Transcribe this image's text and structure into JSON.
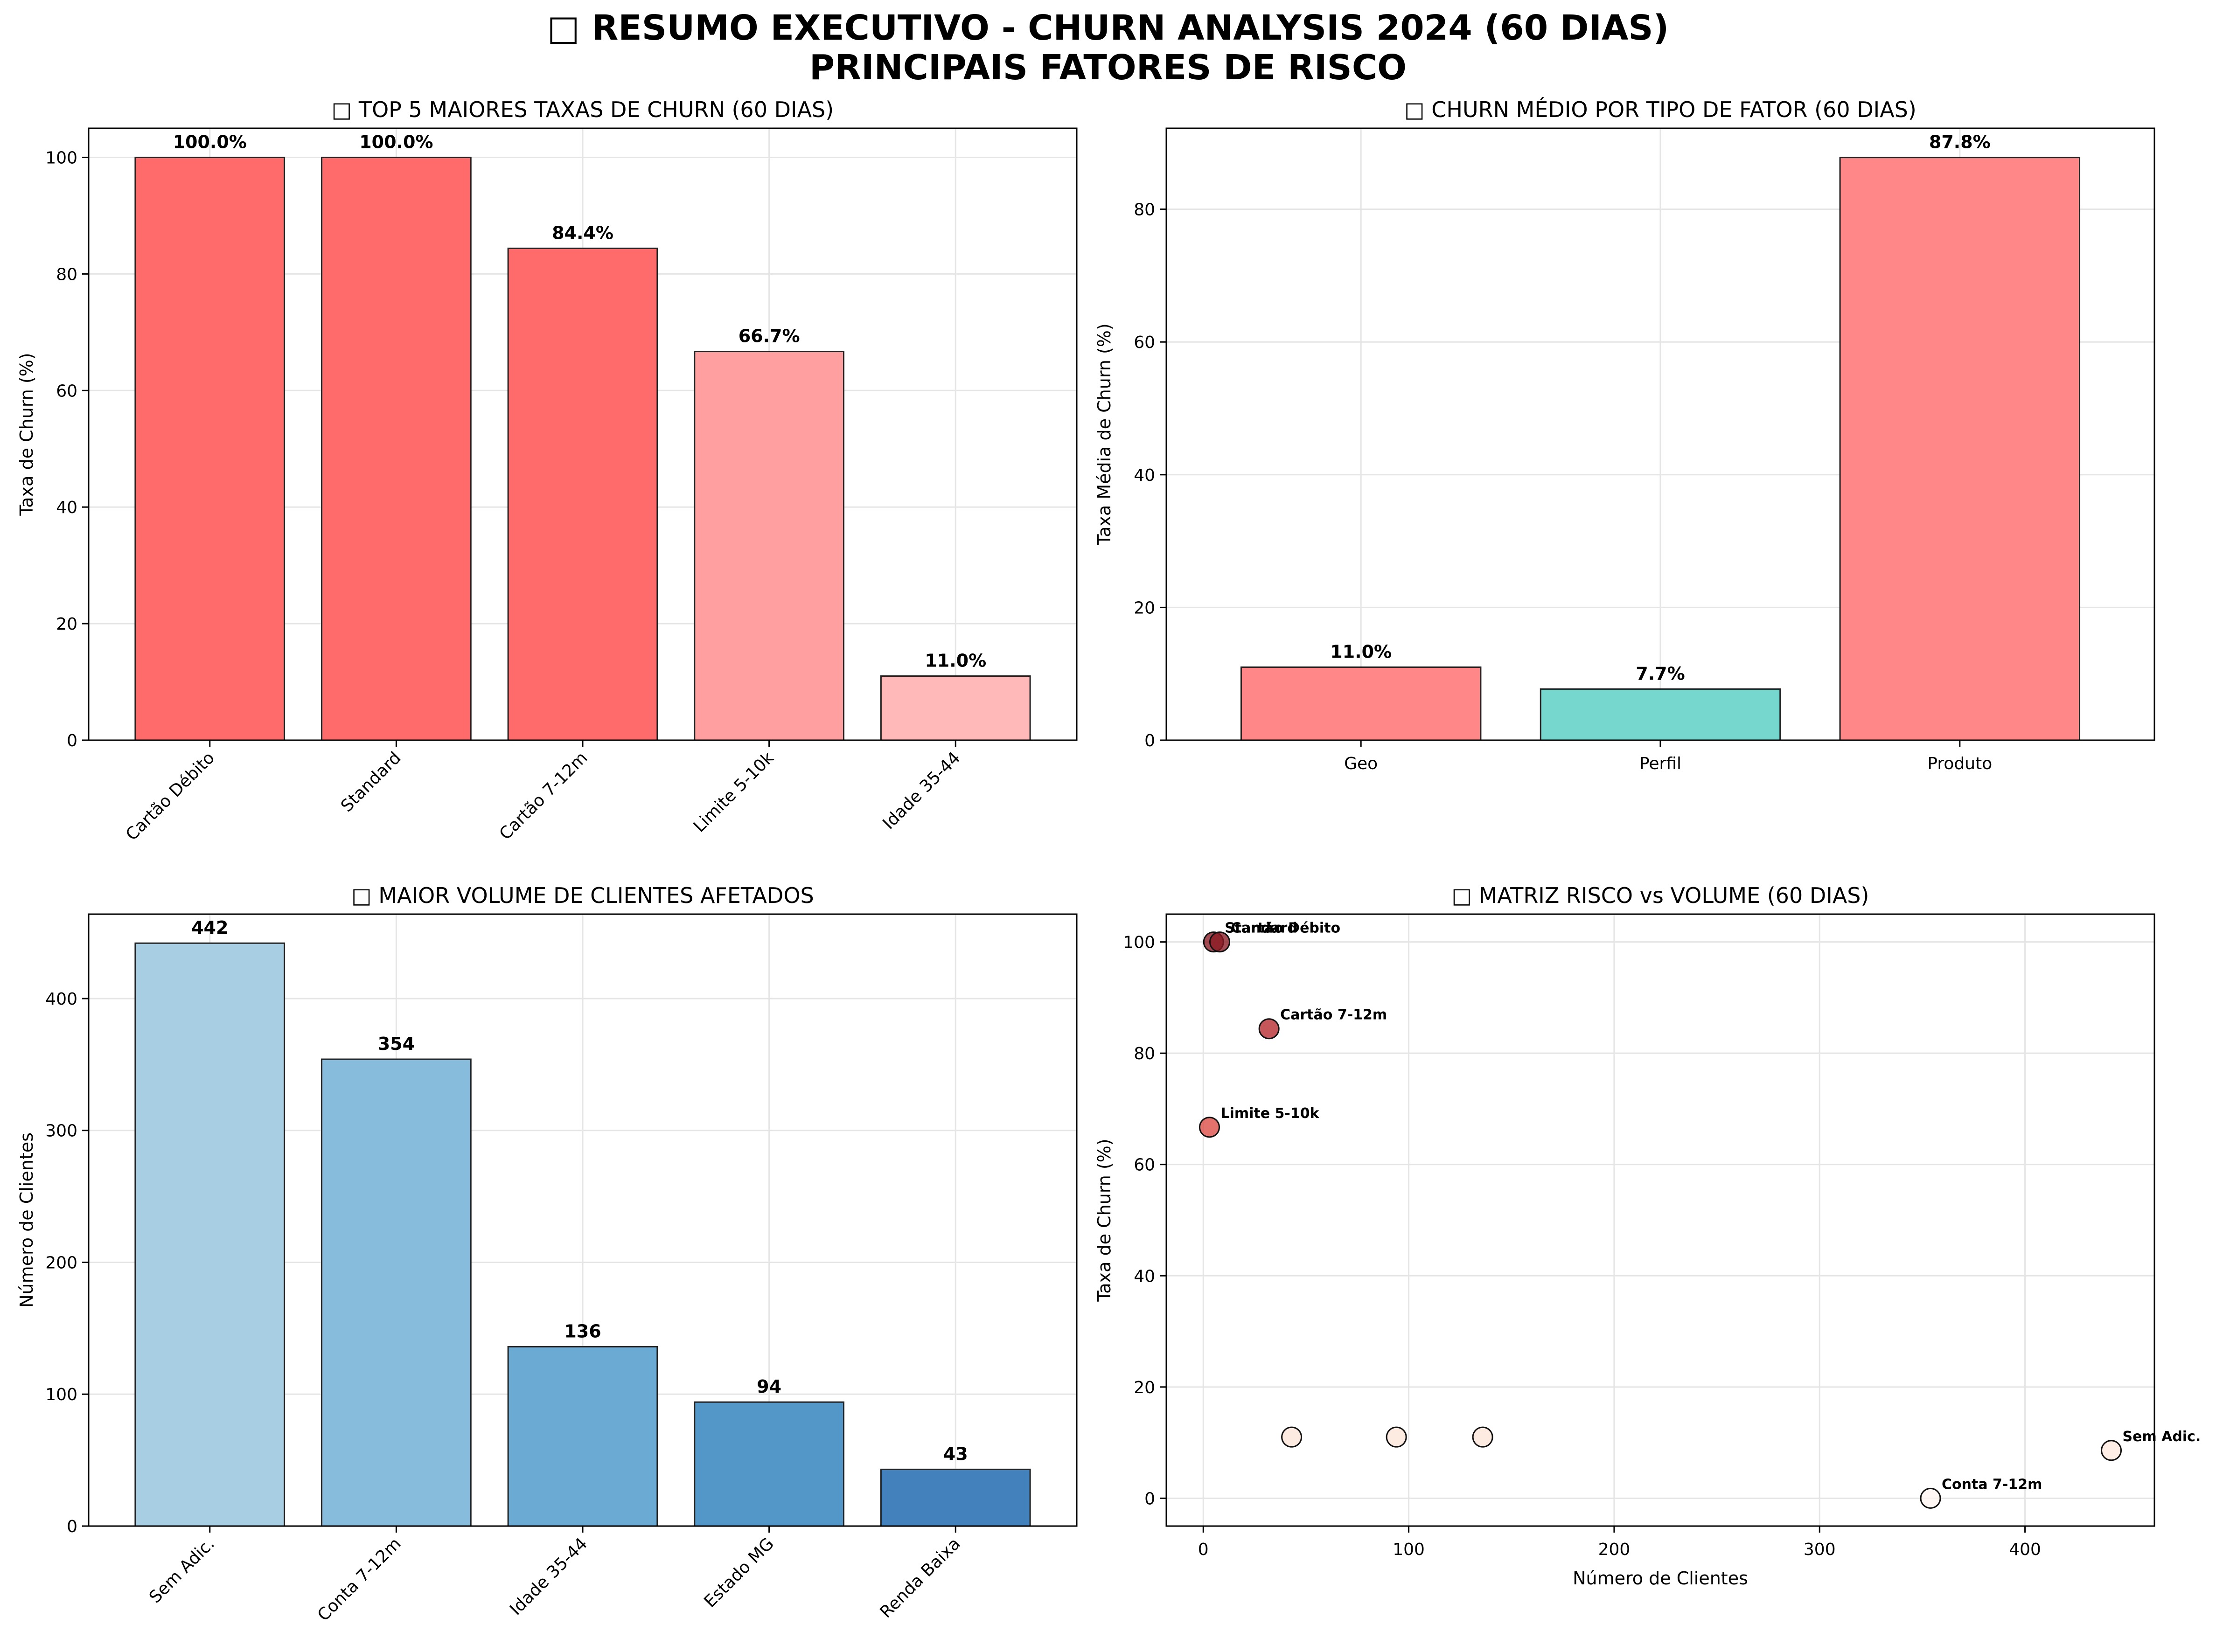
{
  "title": {
    "line1": "□ RESUMO EXECUTIVO - CHURN ANALYSIS 2024 (60 DIAS)",
    "line2": "PRINCIPAIS FATORES DE RISCO"
  },
  "chart_data": [
    {
      "id": "top5",
      "type": "bar",
      "title": "□ TOP 5 MAIORES TAXAS DE CHURN (60 DIAS)",
      "xlabel": "",
      "ylabel": "Taxa de Churn (%)",
      "categories": [
        "Cartão Débito",
        "Standard",
        "Cartão 7-12m",
        "Limite 5-10k",
        "Idade 35-44"
      ],
      "values": [
        100.0,
        100.0,
        84.4,
        66.7,
        11.0
      ],
      "data_labels": [
        "100.0%",
        "100.0%",
        "84.4%",
        "66.7%",
        "11.0%"
      ],
      "colors": [
        "#ff6b6b",
        "#ff6b6b",
        "#ff6b6b",
        "#ff9f9f",
        "#ffb9b9"
      ],
      "ylim": [
        0,
        105
      ],
      "yticks": [
        0,
        20,
        40,
        60,
        80,
        100
      ],
      "xtick_rotation": 45,
      "grid": true
    },
    {
      "id": "tipo",
      "type": "bar",
      "title": "□ CHURN MÉDIO POR TIPO DE FATOR (60 DIAS)",
      "xlabel": "",
      "ylabel": "Taxa Média de Churn (%)",
      "categories": [
        "Geo",
        "Perfil",
        "Produto"
      ],
      "values": [
        11.0,
        7.7,
        87.8
      ],
      "data_labels": [
        "11.0%",
        "7.7%",
        "87.8%"
      ],
      "colors": [
        "#ff8787",
        "#76d7cf",
        "#ff8787"
      ],
      "ylim": [
        0,
        92.2
      ],
      "yticks": [
        0,
        20,
        40,
        60,
        80
      ],
      "xtick_rotation": 0,
      "grid": true
    },
    {
      "id": "volume",
      "type": "bar",
      "title": "□ MAIOR VOLUME DE CLIENTES AFETADOS",
      "xlabel": "",
      "ylabel": "Número de Clientes",
      "categories": [
        "Sem Adic.",
        "Conta 7-12m",
        "Idade 35-44",
        "Estado MG",
        "Renda Baixa"
      ],
      "values": [
        442,
        354,
        136,
        94,
        43
      ],
      "data_labels": [
        "442",
        "354",
        "136",
        "94",
        "43"
      ],
      "colors": [
        "#a8cee4",
        "#88bcdd",
        "#6aaad3",
        "#5396c8",
        "#4281bc"
      ],
      "ylim": [
        0,
        464
      ],
      "yticks": [
        0,
        100,
        200,
        300,
        400
      ],
      "xtick_rotation": 45,
      "grid": true
    },
    {
      "id": "matriz",
      "type": "scatter",
      "title": "□ MATRIZ RISCO vs VOLUME (60 DIAS)",
      "xlabel": "Número de Clientes",
      "ylabel": "Taxa de Churn (%)",
      "xlim": [
        -18,
        463
      ],
      "ylim": [
        -5,
        105
      ],
      "xticks": [
        0,
        100,
        200,
        300,
        400
      ],
      "yticks": [
        0,
        20,
        40,
        60,
        80,
        100
      ],
      "grid": true,
      "points": [
        {
          "x": 5,
          "y": 100.0,
          "label": "Standard",
          "color": "#8b1a22"
        },
        {
          "x": 8,
          "y": 100.0,
          "label": "Cartão Débito",
          "color": "#8b1a22"
        },
        {
          "x": 32,
          "y": 84.4,
          "label": "Cartão 7-12m",
          "color": "#b5282c"
        },
        {
          "x": 3,
          "y": 66.7,
          "label": "Limite 5-10k",
          "color": "#dc4a42"
        },
        {
          "x": 43,
          "y": 11.0,
          "label": "",
          "color": "#fde5d9"
        },
        {
          "x": 94,
          "y": 11.0,
          "label": "",
          "color": "#fde5d9"
        },
        {
          "x": 136,
          "y": 11.0,
          "label": "",
          "color": "#fde5d9"
        },
        {
          "x": 442,
          "y": 8.6,
          "label": "Sem Adic.",
          "color": "#fee9df"
        },
        {
          "x": 354,
          "y": 0.0,
          "label": "Conta 7-12m",
          "color": "#fff5f0"
        }
      ]
    }
  ]
}
